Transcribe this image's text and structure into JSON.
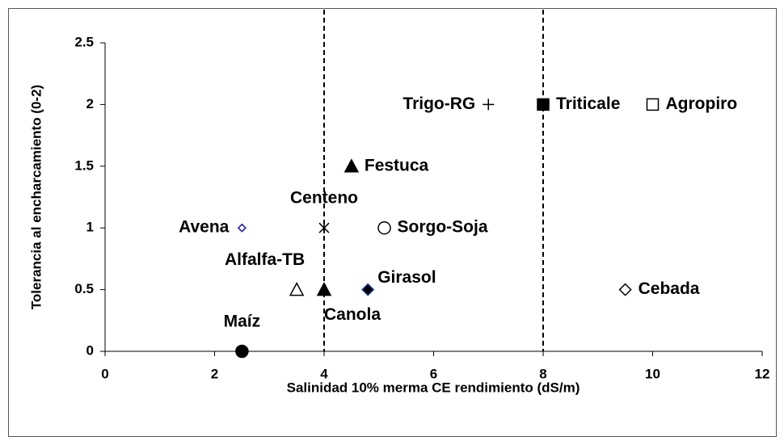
{
  "chart_data": {
    "type": "scatter",
    "x_label": "Salinidad 10% merma CE rendimiento (dS/m)",
    "y_label": "Tolerancia al encharcamiento (0-2)",
    "xlim": [
      0,
      12
    ],
    "xticks": [
      0,
      2,
      4,
      6,
      8,
      10,
      12
    ],
    "ylim": [
      0,
      2.5
    ],
    "yticks": [
      0,
      0.5,
      1,
      1.5,
      2,
      2.5
    ],
    "reference_lines_x": [
      4,
      8
    ],
    "points": [
      {
        "name": "Maíz",
        "x": 2.5,
        "y": 0,
        "marker": "circle",
        "color": "#000000",
        "fill": "#000000",
        "label_side": "above"
      },
      {
        "name": "Alfalfa-TB",
        "x": 3.5,
        "y": 0.5,
        "marker": "triangle",
        "color": "#000000",
        "fill": "#ffffff",
        "label_side": "above-left"
      },
      {
        "name": "Canola",
        "x": 4,
        "y": 0.5,
        "marker": "triangle",
        "color": "#000000",
        "fill": "#000000",
        "label_side": "below"
      },
      {
        "name": "Girasol",
        "x": 4.8,
        "y": 0.5,
        "marker": "diamond",
        "color": "#1f3f8f",
        "fill": "#000000",
        "label_side": "above-right"
      },
      {
        "name": "Avena",
        "x": 2.5,
        "y": 1,
        "marker": "small-diamond",
        "color": "#1a1a9a",
        "fill": "#ffffff",
        "label_side": "left"
      },
      {
        "name": "Centeno",
        "x": 4,
        "y": 1,
        "marker": "asterisk",
        "color": "#000000",
        "fill": "none",
        "label_side": "above"
      },
      {
        "name": "Sorgo-Soja",
        "x": 5.1,
        "y": 1,
        "marker": "circle",
        "color": "#000000",
        "fill": "#ffffff",
        "label_side": "right"
      },
      {
        "name": "Festuca",
        "x": 4.5,
        "y": 1.5,
        "marker": "triangle",
        "color": "#000000",
        "fill": "#000000",
        "label_side": "right"
      },
      {
        "name": "Trigo-RG",
        "x": 7,
        "y": 2,
        "marker": "plus",
        "color": "#000000",
        "fill": "none",
        "label_side": "left"
      },
      {
        "name": "Triticale",
        "x": 8,
        "y": 2,
        "marker": "square",
        "color": "#000000",
        "fill": "#000000",
        "label_side": "right"
      },
      {
        "name": "Agropiro",
        "x": 10,
        "y": 2,
        "marker": "square",
        "color": "#000000",
        "fill": "#ffffff",
        "label_side": "right"
      },
      {
        "name": "Cebada",
        "x": 9.5,
        "y": 0.5,
        "marker": "diamond",
        "color": "#000000",
        "fill": "#ffffff",
        "label_side": "right"
      }
    ]
  }
}
